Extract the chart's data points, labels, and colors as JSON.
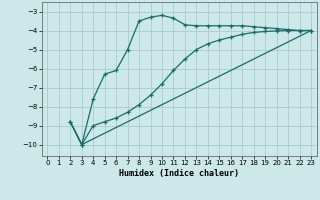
{
  "xlabel": "Humidex (Indice chaleur)",
  "bg_color": "#cce8e8",
  "grid_color": "#aacccc",
  "line_color": "#1a6b6b",
  "xlim": [
    -0.5,
    23.5
  ],
  "ylim": [
    -10.6,
    -2.5
  ],
  "yticks": [
    -10,
    -9,
    -8,
    -7,
    -6,
    -5,
    -4,
    -3
  ],
  "xticks": [
    0,
    1,
    2,
    3,
    4,
    5,
    6,
    7,
    8,
    9,
    10,
    11,
    12,
    13,
    14,
    15,
    16,
    17,
    18,
    19,
    20,
    21,
    22,
    23
  ],
  "line1_x": [
    2,
    3,
    4,
    5,
    6,
    7,
    8,
    9,
    10,
    11,
    12,
    13,
    14,
    15,
    16,
    17,
    18,
    19,
    20,
    21,
    22,
    23
  ],
  "line1_y": [
    -8.8,
    -10.0,
    -7.6,
    -6.3,
    -6.1,
    -5.0,
    -3.5,
    -3.3,
    -3.2,
    -3.35,
    -3.7,
    -3.75,
    -3.75,
    -3.75,
    -3.75,
    -3.75,
    -3.8,
    -3.85,
    -3.9,
    -3.95,
    -4.0,
    -4.0
  ],
  "line2_x": [
    2,
    3,
    4,
    5,
    6,
    7,
    8,
    9,
    10,
    11,
    12,
    13,
    14,
    15,
    16,
    17,
    18,
    19,
    20,
    21,
    22,
    23
  ],
  "line2_y": [
    -8.8,
    -10.0,
    -9.0,
    -8.8,
    -8.6,
    -8.3,
    -7.9,
    -7.4,
    -6.8,
    -6.1,
    -5.5,
    -5.0,
    -4.7,
    -4.5,
    -4.35,
    -4.2,
    -4.1,
    -4.05,
    -4.02,
    -4.0,
    -4.0,
    -4.0
  ],
  "line3_x": [
    2,
    3,
    23
  ],
  "line3_y": [
    -8.8,
    -10.0,
    -4.0
  ]
}
